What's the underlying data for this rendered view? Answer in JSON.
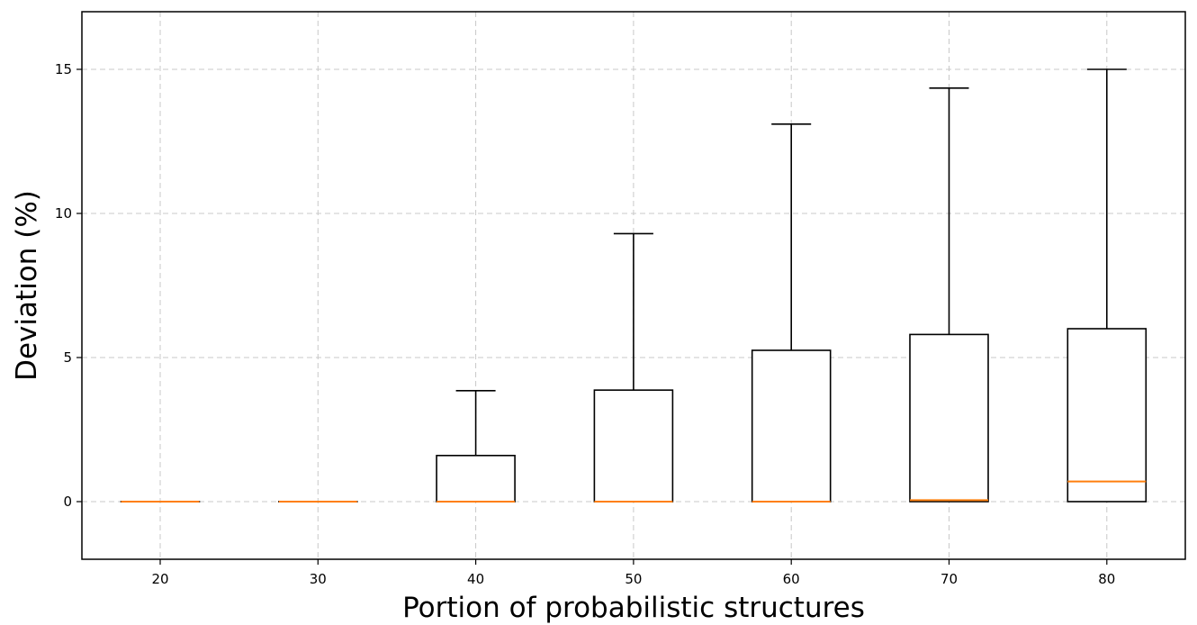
{
  "chart_data": {
    "type": "box",
    "title": "",
    "xlabel": "Portion of probabilistic structures",
    "ylabel": "Deviation (%)",
    "categories": [
      "20",
      "30",
      "40",
      "50",
      "60",
      "70",
      "80"
    ],
    "boxes": [
      {
        "whislo": 0,
        "q1": 0,
        "med": 0,
        "q3": 0,
        "whishi": 0
      },
      {
        "whislo": 0,
        "q1": 0,
        "med": 0,
        "q3": 0,
        "whishi": 0
      },
      {
        "whislo": 0,
        "q1": 0,
        "med": 0,
        "q3": 1.6,
        "whishi": 3.85
      },
      {
        "whislo": 0,
        "q1": 0,
        "med": 0,
        "q3": 3.87,
        "whishi": 9.3
      },
      {
        "whislo": 0,
        "q1": 0,
        "med": 0,
        "q3": 5.25,
        "whishi": 13.1
      },
      {
        "whislo": 0,
        "q1": 0,
        "med": 0.05,
        "q3": 5.8,
        "whishi": 14.35
      },
      {
        "whislo": 0,
        "q1": 0,
        "med": 0.7,
        "q3": 6.0,
        "whishi": 15.0
      }
    ],
    "yticks": [
      0,
      5,
      10,
      15
    ],
    "ylim": [
      -2,
      17
    ],
    "grid": true,
    "colors": {
      "box": "#000000",
      "median": "#ff7f0e",
      "grid": "#c8c8c8"
    }
  }
}
